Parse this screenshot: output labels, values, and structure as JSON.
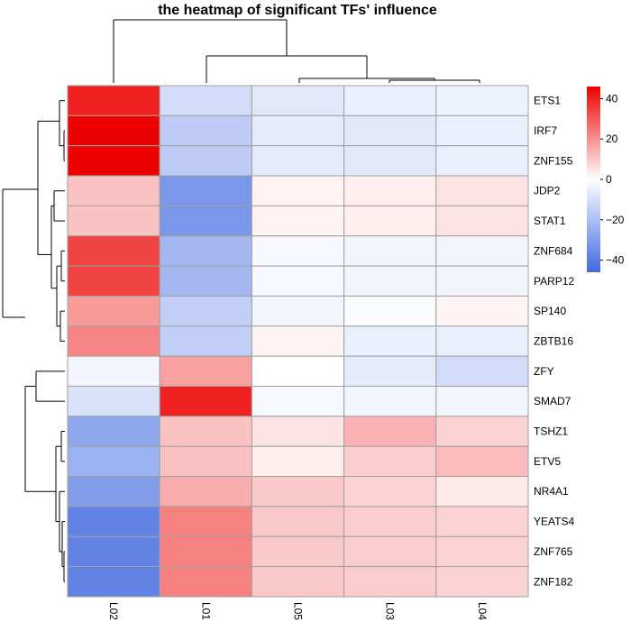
{
  "chart_data": {
    "type": "heatmap",
    "title": "the heatmap of significant TFs' influence",
    "columns": [
      "L02",
      "L01",
      "L05",
      "L03",
      "L04"
    ],
    "rows": [
      "ETS1",
      "IRF7",
      "ZNF155",
      "JDP2",
      "STAT1",
      "ZNF684",
      "PARP12",
      "SP140",
      "ZBTB16",
      "ZFY",
      "SMAD7",
      "TSHZ1",
      "ETV5",
      "NR4A1",
      "YEATS4",
      "ZNF765",
      "ZNF182"
    ],
    "values": [
      [
        40,
        -11,
        -7,
        -5,
        -4
      ],
      [
        46,
        -16,
        -6,
        -7,
        -5
      ],
      [
        46,
        -16,
        -6,
        -7,
        -5
      ],
      [
        11,
        -32,
        2,
        3,
        5
      ],
      [
        11,
        -32,
        2,
        3,
        5
      ],
      [
        34,
        -22,
        -2,
        -3,
        -3
      ],
      [
        34,
        -22,
        -2,
        -3,
        -3
      ],
      [
        18,
        -15,
        -3,
        -1,
        2
      ],
      [
        22,
        -15,
        2,
        -5,
        -5
      ],
      [
        -3,
        17,
        0,
        -6,
        -11
      ],
      [
        -9,
        40,
        -2,
        -3,
        -3
      ],
      [
        -27,
        11,
        5,
        14,
        8
      ],
      [
        -24,
        11,
        3,
        9,
        12
      ],
      [
        -30,
        15,
        10,
        8,
        4
      ],
      [
        -38,
        23,
        10,
        9,
        8
      ],
      [
        -38,
        23,
        10,
        9,
        8
      ],
      [
        -38,
        23,
        10,
        9,
        8
      ]
    ],
    "color_scale": {
      "min": -46,
      "max": 46,
      "low_color": "#4169e1",
      "mid_color": "#ffffff",
      "high_color": "#ee0000",
      "ticks": [
        40,
        20,
        0,
        -20,
        -40
      ]
    },
    "row_dendrogram": true,
    "column_dendrogram": true,
    "cell_border_color": "#a0a0a0"
  }
}
